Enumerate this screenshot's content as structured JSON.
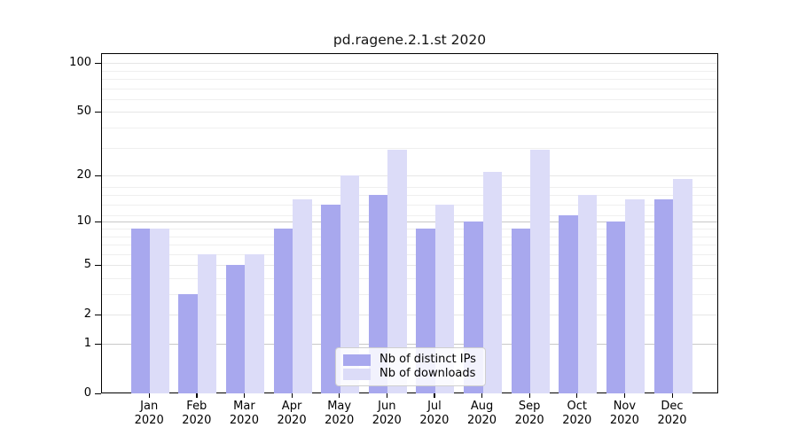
{
  "chart_data": {
    "type": "bar",
    "title": "pd.ragene.2.1.st 2020",
    "categories": [
      "Jan 2020",
      "Feb 2020",
      "Mar 2020",
      "Apr 2020",
      "May 2020",
      "Jun 2020",
      "Jul 2020",
      "Aug 2020",
      "Sep 2020",
      "Oct 2020",
      "Nov 2020",
      "Dec 2020"
    ],
    "series": [
      {
        "name": "Nb of distinct IPs",
        "color": "#a8a8ee",
        "values": [
          9,
          3,
          5,
          9,
          13,
          15,
          9,
          10,
          9,
          11,
          10,
          14
        ]
      },
      {
        "name": "Nb of downloads",
        "color": "#dcdcf8",
        "values": [
          9,
          6,
          6,
          14,
          20,
          29,
          13,
          21,
          29,
          15,
          14,
          19
        ]
      }
    ],
    "xlabel": "",
    "ylabel": "",
    "yscale": "log1p",
    "yticks": [
      0,
      1,
      2,
      5,
      10,
      20,
      50,
      100
    ],
    "ylim": [
      0,
      115
    ],
    "grid": true,
    "emphasized_gridlines": [
      1,
      10
    ],
    "minor_gridlines": [
      3,
      4,
      6,
      7,
      8,
      9,
      11,
      13,
      15,
      17,
      30,
      40,
      60,
      70,
      80,
      90
    ],
    "legend": {
      "position": "lower center"
    }
  },
  "colors": {
    "grid_emphasis": "#c8c8c8",
    "grid_major": "#e6e6e6",
    "grid_minor": "#efefef",
    "axis": "#000000",
    "background": "#ffffff"
  }
}
